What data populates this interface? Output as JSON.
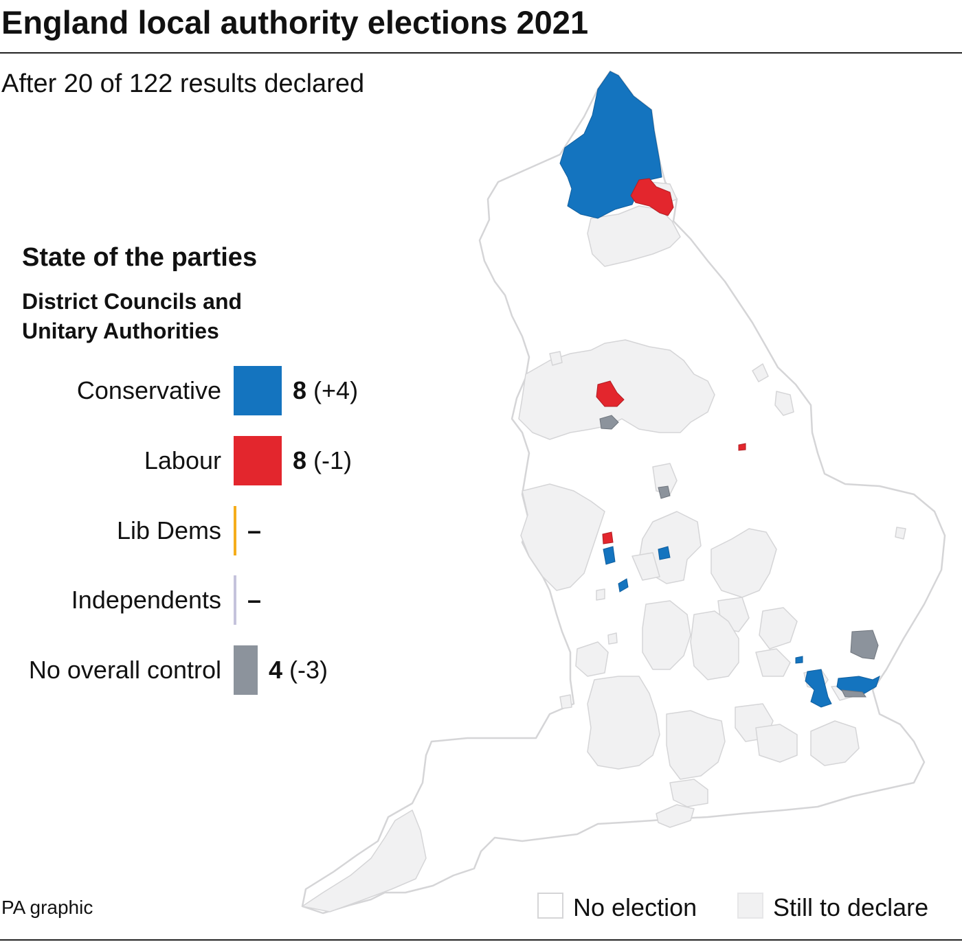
{
  "header": {
    "title": "England local authority elections 2021",
    "subtitle": "After 20 of 122 results declared"
  },
  "panel": {
    "heading": "State of the parties",
    "sub_line1": "District Councils and",
    "sub_line2": "Unitary Authorities",
    "parties": [
      {
        "name": "Conservative",
        "count": "8",
        "change": "(+4)",
        "color": "#1474bf",
        "bar_value": 8
      },
      {
        "name": "Labour",
        "count": "8",
        "change": "(-1)",
        "color": "#e3262d",
        "bar_value": 8
      },
      {
        "name": "Lib Dems",
        "count": "–",
        "change": "",
        "color": "#f5ad1b",
        "bar_value": 0
      },
      {
        "name": "Independents",
        "count": "–",
        "change": "",
        "color": "#c5c3dc",
        "bar_value": 0
      },
      {
        "name": "No overall control",
        "count": "4",
        "change": "(-3)",
        "color": "#8c939c",
        "bar_value": 4
      }
    ]
  },
  "key": {
    "no_election": "No election",
    "still_to_declare": "Still to declare",
    "no_election_color": "#ffffff",
    "still_to_declare_color": "#f1f1f2"
  },
  "source": "PA graphic",
  "colors": {
    "conservative": "#1474bf",
    "labour": "#e3262d",
    "noc": "#8c939c",
    "still_to_declare": "#f1f1f2",
    "outline": "#d5d5d7"
  }
}
